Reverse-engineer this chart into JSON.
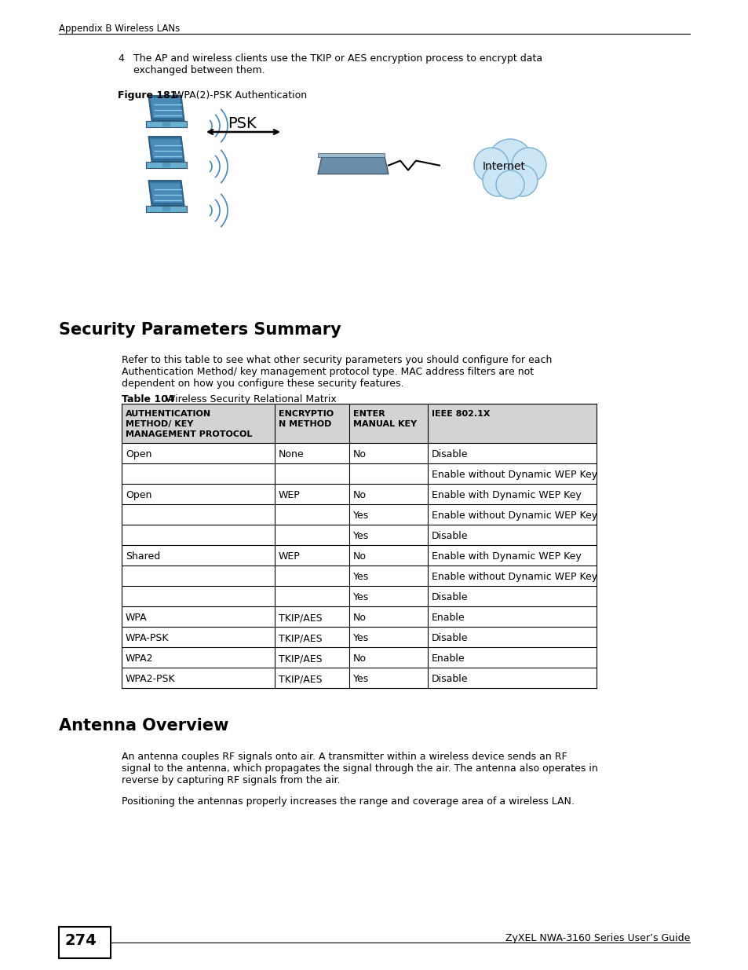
{
  "page_header": "Appendix B Wireless LANs",
  "step4_num": "4",
  "step4_text": "The AP and wireless clients use the TKIP or AES encryption process to encrypt data\nexchanged between them.",
  "figure_label_bold": "Figure 181",
  "figure_label_rest": "   WPA(2)-PSK Authentication",
  "psk_label": "PSK",
  "internet_label": "Internet",
  "section1_title": "Security Parameters Summary",
  "section1_intro": "Refer to this table to see what other security parameters you should configure for each\nAuthentication Method/ key management protocol type. MAC address filters are not\ndependent on how you configure these security features.",
  "table_label_bold": "Table 104",
  "table_label_rest": "   Wireless Security Relational Matrix",
  "table_headers": [
    "AUTHENTICATION\nMETHOD/ KEY\nMANAGEMENT PROTOCOL",
    "ENCRYPTIO\nN METHOD",
    "ENTER\nMANUAL KEY",
    "IEEE 802.1X"
  ],
  "table_rows": [
    [
      "Open",
      "None",
      "No",
      "Disable"
    ],
    [
      "",
      "",
      "",
      "Enable without Dynamic WEP Key"
    ],
    [
      "Open",
      "WEP",
      "No",
      "Enable with Dynamic WEP Key"
    ],
    [
      "",
      "",
      "Yes",
      "Enable without Dynamic WEP Key"
    ],
    [
      "",
      "",
      "Yes",
      "Disable"
    ],
    [
      "Shared",
      "WEP",
      "No",
      "Enable with Dynamic WEP Key"
    ],
    [
      "",
      "",
      "Yes",
      "Enable without Dynamic WEP Key"
    ],
    [
      "",
      "",
      "Yes",
      "Disable"
    ],
    [
      "WPA",
      "TKIP/AES",
      "No",
      "Enable"
    ],
    [
      "WPA-PSK",
      "TKIP/AES",
      "Yes",
      "Disable"
    ],
    [
      "WPA2",
      "TKIP/AES",
      "No",
      "Enable"
    ],
    [
      "WPA2-PSK",
      "TKIP/AES",
      "Yes",
      "Disable"
    ]
  ],
  "section2_title": "Antenna Overview",
  "antenna_para1": "An antenna couples RF signals onto air. A transmitter within a wireless device sends an RF\nsignal to the antenna, which propagates the signal through the air. The antenna also operates in\nreverse by capturing RF signals from the air.",
  "antenna_para2": "Positioning the antennas properly increases the range and coverage area of a wireless LAN.",
  "page_number": "274",
  "footer_text": "ZyXEL NWA-3160 Series User’s Guide",
  "bg_color": "#ffffff",
  "table_header_bg": "#d3d3d3",
  "border_color": "#000000",
  "laptop_screen_color": "#4a8ab5",
  "laptop_base_color": "#6ab0d0",
  "laptop_screen_dark": "#2a6a95",
  "ap_color": "#7a9ab5",
  "cloud_color": "#cce5f5",
  "cloud_edge": "#7ab0d0"
}
